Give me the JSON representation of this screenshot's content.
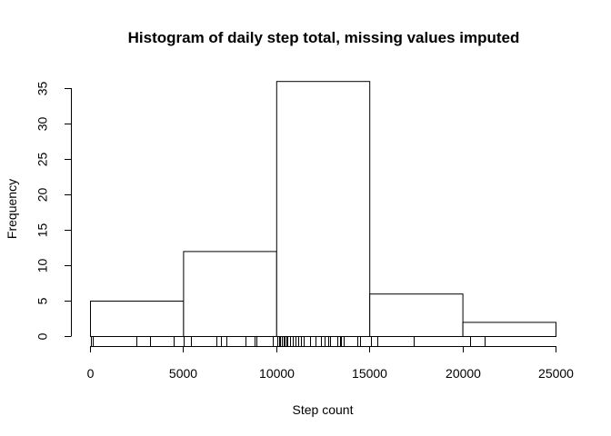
{
  "chart_data": {
    "type": "bar",
    "title": "Histogram of daily step total, missing values imputed",
    "xlabel": "Step count",
    "ylabel": "Frequency",
    "bins": [
      {
        "from": 0,
        "to": 5000,
        "count": 5
      },
      {
        "from": 5000,
        "to": 10000,
        "count": 12
      },
      {
        "from": 10000,
        "to": 15000,
        "count": 36
      },
      {
        "from": 15000,
        "to": 20000,
        "count": 6
      },
      {
        "from": 20000,
        "to": 25000,
        "count": 2
      }
    ],
    "xlim": [
      0,
      25000
    ],
    "ylim": [
      0,
      35
    ],
    "x_ticks": [
      0,
      5000,
      10000,
      15000,
      20000,
      25000
    ],
    "y_ticks": [
      0,
      5,
      10,
      15,
      20,
      25,
      30,
      35
    ],
    "rug": [
      41,
      126,
      2492,
      3219,
      4472,
      5018,
      5441,
      6778,
      7047,
      7336,
      8334,
      8355,
      8821,
      8918,
      9819,
      10056,
      10139,
      10183,
      10304,
      10395,
      10439,
      10571,
      10600,
      10765,
      10890,
      11015,
      11162,
      11352,
      11458,
      11829,
      11834,
      12116,
      12426,
      12608,
      12787,
      12811,
      12883,
      13294,
      13452,
      13460,
      13646,
      14339,
      14478,
      15084,
      15098,
      15110,
      15414,
      17382,
      20427,
      21194
    ],
    "grid": false,
    "legend": "none"
  }
}
